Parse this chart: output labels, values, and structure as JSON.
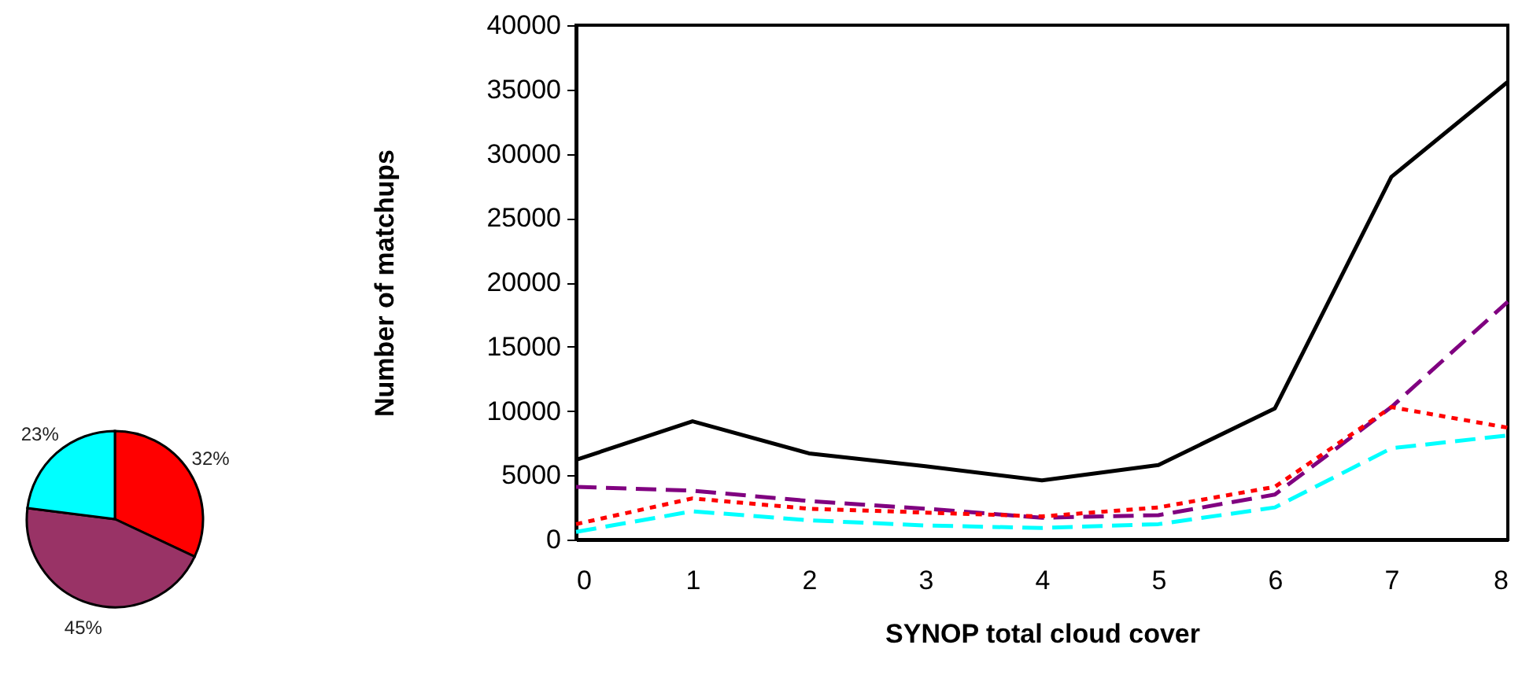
{
  "chart_data": [
    {
      "type": "pie",
      "categories": [
        null,
        null,
        null
      ],
      "values": [
        32,
        45,
        23
      ],
      "colors": [
        "#ff0000",
        "#993366",
        "#00ffff"
      ],
      "value_labels": [
        "32%",
        "45%",
        "23%"
      ]
    },
    {
      "type": "line",
      "xlabel": "SYNOP total cloud cover",
      "ylabel": "Number of matchups",
      "x": [
        0,
        1,
        2,
        3,
        4,
        5,
        6,
        7,
        8
      ],
      "xlim": [
        0,
        8
      ],
      "xticks": [
        0,
        1,
        2,
        3,
        4,
        5,
        6,
        7,
        8
      ],
      "ylim": [
        0,
        40000
      ],
      "yticks": [
        0,
        5000,
        10000,
        15000,
        20000,
        25000,
        30000,
        35000,
        40000
      ],
      "grid": false,
      "marker": "none",
      "series": [
        {
          "color": "#000000",
          "line_style": "solid",
          "values": [
            6200,
            9200,
            6700,
            5700,
            4600,
            5800,
            10200,
            28200,
            35600
          ]
        },
        {
          "color": "#800080",
          "line_style": "dashed",
          "values": [
            4100,
            3800,
            3000,
            2400,
            1700,
            1900,
            3500,
            10300,
            18500
          ]
        },
        {
          "color": "#ff0000",
          "line_style": "dotted",
          "values": [
            1200,
            3200,
            2400,
            2100,
            1800,
            2500,
            4100,
            10300,
            8700
          ]
        },
        {
          "color": "#00ffff",
          "line_style": "dashed",
          "values": [
            600,
            2200,
            1500,
            1100,
            900,
            1200,
            2500,
            7100,
            8100
          ]
        }
      ]
    }
  ]
}
